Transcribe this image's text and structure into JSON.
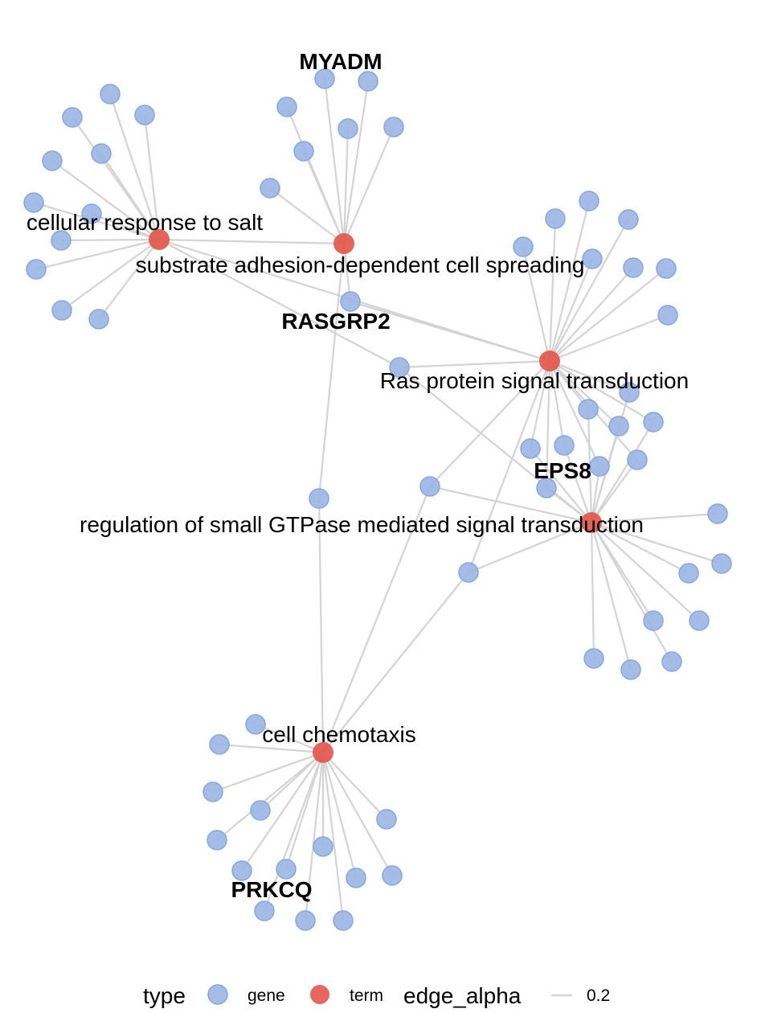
{
  "network": {
    "terms": [
      {
        "id": "salt",
        "label": "cellular response to salt"
      },
      {
        "id": "adhesion",
        "label": "substrate adhesion-dependent cell spreading"
      },
      {
        "id": "ras",
        "label": "Ras protein signal transduction"
      },
      {
        "id": "gtpase",
        "label": "regulation of small GTPase mediated signal transduction"
      },
      {
        "id": "chemotaxis",
        "label": "cell chemotaxis"
      }
    ],
    "gene_labels": [
      "MYADM",
      "RASGRP2",
      "EPS8",
      "PRKCQ"
    ],
    "colors": {
      "gene": "#9BB5E3",
      "gene_stroke": "#88A6DB",
      "term": "#E2574C",
      "edge": "#D3D3D3"
    }
  },
  "legend": {
    "type_title": "type",
    "gene_label": "gene",
    "term_label": "term",
    "edge_title": "edge_alpha",
    "edge_value": "0.2"
  }
}
